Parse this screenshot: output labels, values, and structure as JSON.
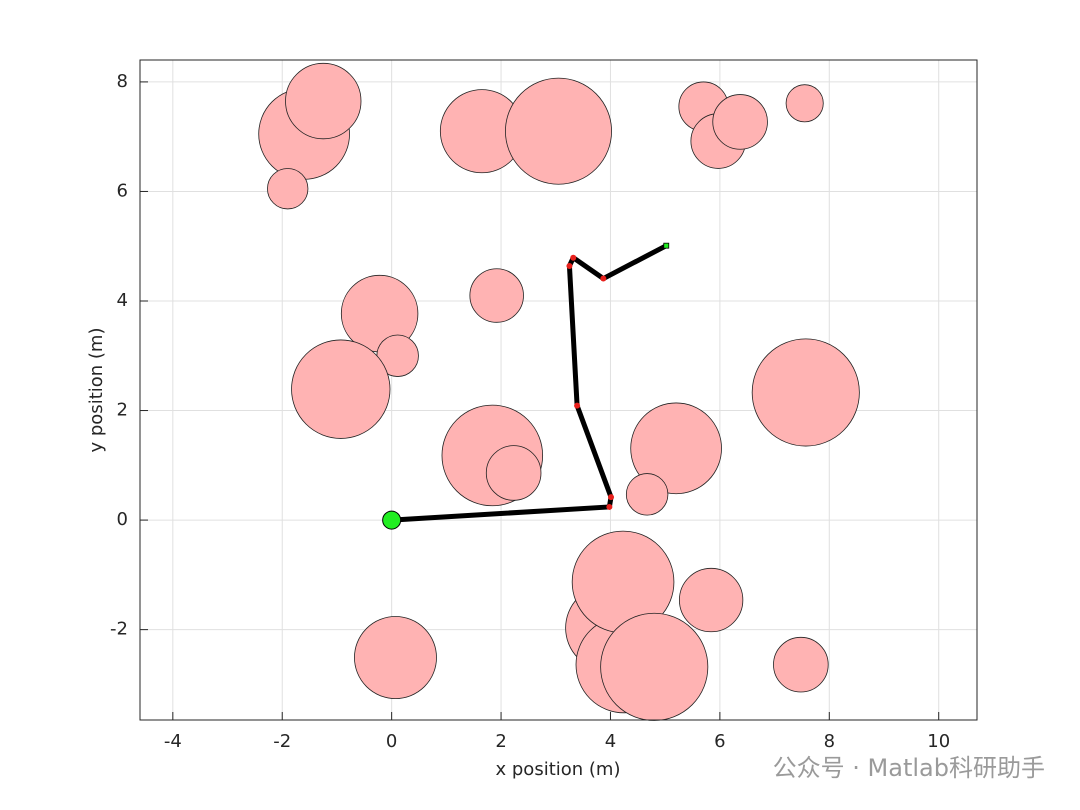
{
  "chart_data": {
    "type": "scatter",
    "xlabel": "x position (m)",
    "ylabel": "y position (m)",
    "xlim": [
      -4.6,
      10.7
    ],
    "ylim": [
      -3.65,
      8.4
    ],
    "xticks": [
      -4,
      -2,
      0,
      2,
      4,
      6,
      8,
      10
    ],
    "yticks": [
      -2,
      0,
      2,
      4,
      6,
      8
    ],
    "grid": true,
    "obstacles": {
      "color": "#ffb3b3",
      "x": [
        -1.6,
        -1.25,
        -1.9,
        1.65,
        3.05,
        5.7,
        5.97,
        6.37,
        7.55,
        1.92,
        -0.22,
        0.11,
        -0.93,
        1.84,
        2.23,
        5.2,
        4.67,
        7.57,
        0.07,
        3.96,
        4.25,
        4.23,
        4.8,
        5.84,
        7.48
      ],
      "y": [
        7.05,
        7.65,
        6.05,
        7.1,
        7.1,
        7.55,
        6.92,
        7.27,
        7.61,
        4.1,
        3.77,
        3.0,
        2.39,
        1.18,
        0.86,
        1.31,
        0.47,
        2.33,
        -2.51,
        -1.97,
        -2.64,
        -1.13,
        -2.68,
        -1.46,
        -2.64
      ],
      "r": [
        0.83,
        0.69,
        0.37,
        0.76,
        0.97,
        0.45,
        0.5,
        0.5,
        0.34,
        0.49,
        0.7,
        0.38,
        0.9,
        0.92,
        0.5,
        0.83,
        0.38,
        0.98,
        0.75,
        0.78,
        0.88,
        0.93,
        0.98,
        0.58,
        0.5
      ]
    },
    "path": {
      "color": "#000000",
      "waypoint_color": "#e8201c",
      "x": [
        0,
        3.98,
        4.01,
        3.39,
        3.25,
        3.32,
        3.87,
        5.02
      ],
      "y": [
        0,
        0.24,
        0.42,
        2.09,
        4.64,
        4.79,
        4.41,
        5.01
      ]
    },
    "start": {
      "x": 0,
      "y": 0,
      "color": "#22ee22"
    },
    "goal": {
      "x": 5.02,
      "y": 5.01,
      "color": "#22ee22"
    },
    "watermark": "公众号 · Matlab科研助手"
  }
}
